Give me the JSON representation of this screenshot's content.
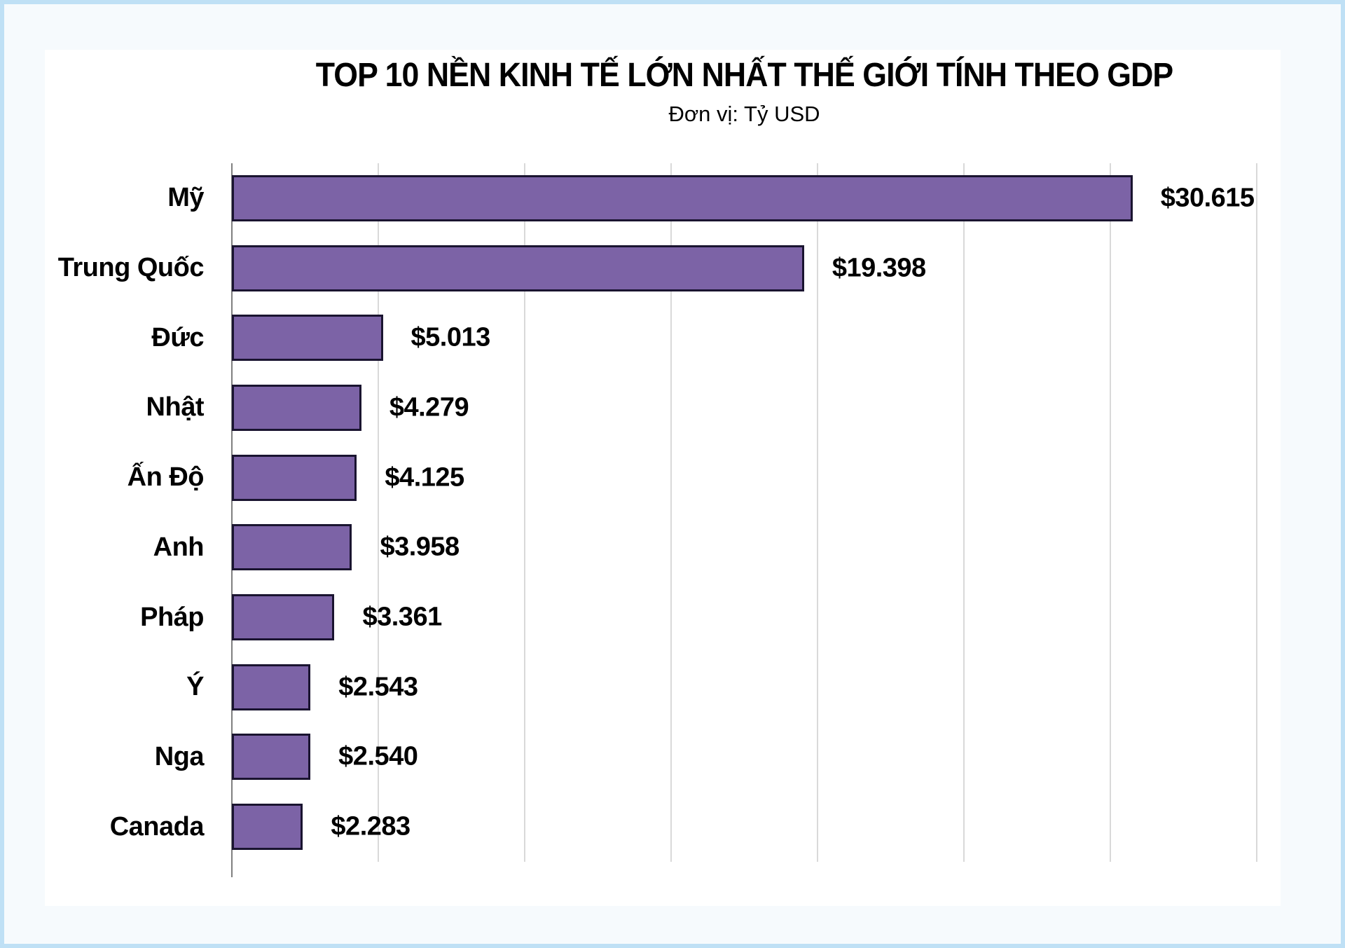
{
  "chart_data": {
    "type": "bar",
    "orientation": "horizontal",
    "title": "TOP 10 NỀN KINH TẾ LỚN NHẤT THẾ GIỚI TÍNH THEO GDP",
    "subtitle": "Đơn vị: Tỷ USD",
    "categories": [
      "Mỹ",
      "Trung Quốc",
      "Đức",
      "Nhật",
      "Ấn Độ",
      "Anh",
      "Pháp",
      "Ý",
      "Nga",
      "Canada"
    ],
    "values": [
      30.615,
      19.398,
      5.013,
      4.279,
      4.125,
      3.958,
      3.361,
      2.543,
      2.54,
      2.283
    ],
    "value_labels": [
      "$30.615",
      "$19.398",
      "$5.013",
      "$4.279",
      "$4.125",
      "$3.958",
      "$3.361",
      "$2.543",
      "$2.540",
      "$2.283"
    ],
    "xlim": [
      0,
      35
    ],
    "x_gridlines_at": [
      0,
      5,
      10,
      15,
      20,
      25,
      30,
      35
    ],
    "grid": true,
    "legend": false,
    "axis_tick_labels_visible": false,
    "colors": {
      "bar_fill": "#7C63A6",
      "bar_border": "#1A1430",
      "gridline": "#D9D9D9",
      "axis_line": "#7F7F7F",
      "panel_background": "#FFFFFF",
      "page_background": "#F6FAFD",
      "frame_border": "#BFE0F5",
      "text": "#000000"
    }
  }
}
